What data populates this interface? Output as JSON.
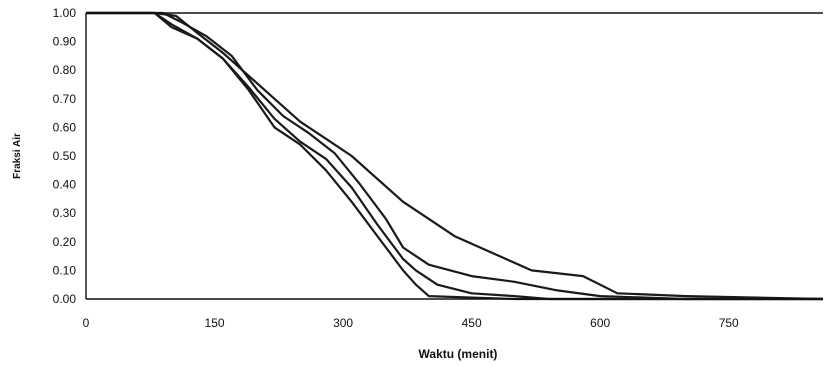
{
  "chart_data": {
    "type": "line",
    "title": "",
    "xlabel": "Waktu (menit)",
    "ylabel": "Fraksi Air",
    "xlim": [
      0,
      860
    ],
    "ylim": [
      0,
      1
    ],
    "x_ticks": [
      "0",
      "150",
      "300",
      "450",
      "600",
      "750"
    ],
    "y_ticks": [
      "0.00",
      "0.10",
      "0.20",
      "0.30",
      "0.40",
      "0.50",
      "0.60",
      "0.70",
      "0.80",
      "0.90",
      "1.00"
    ],
    "grid": false,
    "legend": "none",
    "colors": {
      "line": "#1a1a1a",
      "frame": "#111111"
    },
    "series": [
      {
        "x": [
          0,
          80,
          105,
          130,
          160,
          190,
          220,
          250,
          280,
          310,
          340,
          370,
          390,
          430,
          520,
          580,
          600,
          620,
          700,
          860
        ],
        "y": [
          1.0,
          1.0,
          0.99,
          0.93,
          0.86,
          0.78,
          0.7,
          0.62,
          0.56,
          0.5,
          0.42,
          0.34,
          0.3,
          0.22,
          0.1,
          0.08,
          0.05,
          0.02,
          0.01,
          0.0
        ]
      },
      {
        "x": [
          0,
          90,
          110,
          140,
          170,
          200,
          230,
          260,
          290,
          320,
          350,
          370,
          400,
          450,
          500,
          550,
          600,
          700,
          860
        ],
        "y": [
          1.0,
          1.0,
          0.97,
          0.92,
          0.85,
          0.73,
          0.64,
          0.58,
          0.51,
          0.4,
          0.28,
          0.18,
          0.12,
          0.08,
          0.06,
          0.03,
          0.01,
          0.0,
          0.0
        ]
      },
      {
        "x": [
          0,
          80,
          100,
          130,
          160,
          190,
          220,
          250,
          280,
          310,
          340,
          370,
          385,
          410,
          450,
          500,
          540,
          600,
          860
        ],
        "y": [
          1.0,
          1.0,
          0.96,
          0.91,
          0.84,
          0.74,
          0.63,
          0.55,
          0.49,
          0.39,
          0.26,
          0.14,
          0.1,
          0.05,
          0.02,
          0.01,
          0.0,
          0.0,
          0.0
        ]
      },
      {
        "x": [
          0,
          80,
          100,
          130,
          160,
          190,
          220,
          250,
          280,
          310,
          340,
          370,
          385,
          400,
          500,
          860
        ],
        "y": [
          1.0,
          1.0,
          0.95,
          0.91,
          0.84,
          0.73,
          0.6,
          0.54,
          0.45,
          0.34,
          0.22,
          0.1,
          0.05,
          0.01,
          0.0,
          0.0
        ]
      }
    ]
  }
}
